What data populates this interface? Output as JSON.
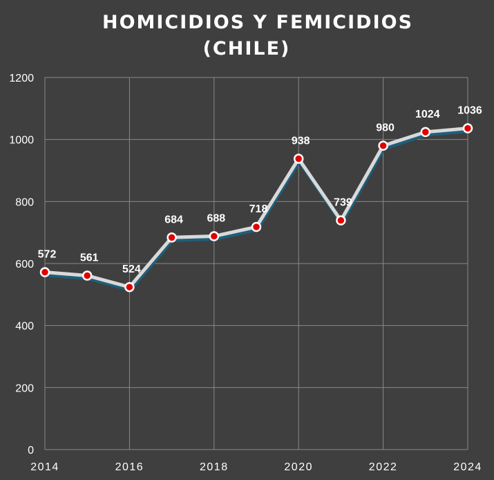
{
  "chart_data": {
    "type": "line",
    "title": "HOMICIDIOS Y FEMICIDIOS",
    "subtitle": "(CHILE)",
    "xlabel": "",
    "ylabel": "",
    "x": [
      2014,
      2015,
      2016,
      2017,
      2018,
      2019,
      2020,
      2021,
      2022,
      2023,
      2024
    ],
    "values": [
      572,
      561,
      524,
      684,
      688,
      718,
      938,
      739,
      980,
      1024,
      1036
    ],
    "data_labels": [
      "572",
      "561",
      "524",
      "684",
      "688",
      "718",
      "938",
      "739",
      "980",
      "1024",
      "1036"
    ],
    "xlim": [
      2014,
      2024
    ],
    "ylim": [
      0,
      1200
    ],
    "x_ticks": [
      2014,
      2016,
      2018,
      2020,
      2022,
      2024
    ],
    "x_tick_labels": [
      "2014",
      "2016",
      "2018",
      "2020",
      "2022",
      "2024"
    ],
    "y_ticks": [
      0,
      200,
      400,
      600,
      800,
      1000,
      1200
    ],
    "y_tick_labels": [
      "0",
      "200",
      "400",
      "600",
      "800",
      "1000",
      "1200"
    ],
    "grid": true,
    "legend": "none"
  },
  "colors": {
    "background": "#3f3f3f",
    "grid": "#8a8a8a",
    "line": "#d9d9d9",
    "line_shadow": "#1f5f7a",
    "marker_fill": "#e00000",
    "marker_stroke": "#ffffff",
    "text": "#ffffff"
  }
}
